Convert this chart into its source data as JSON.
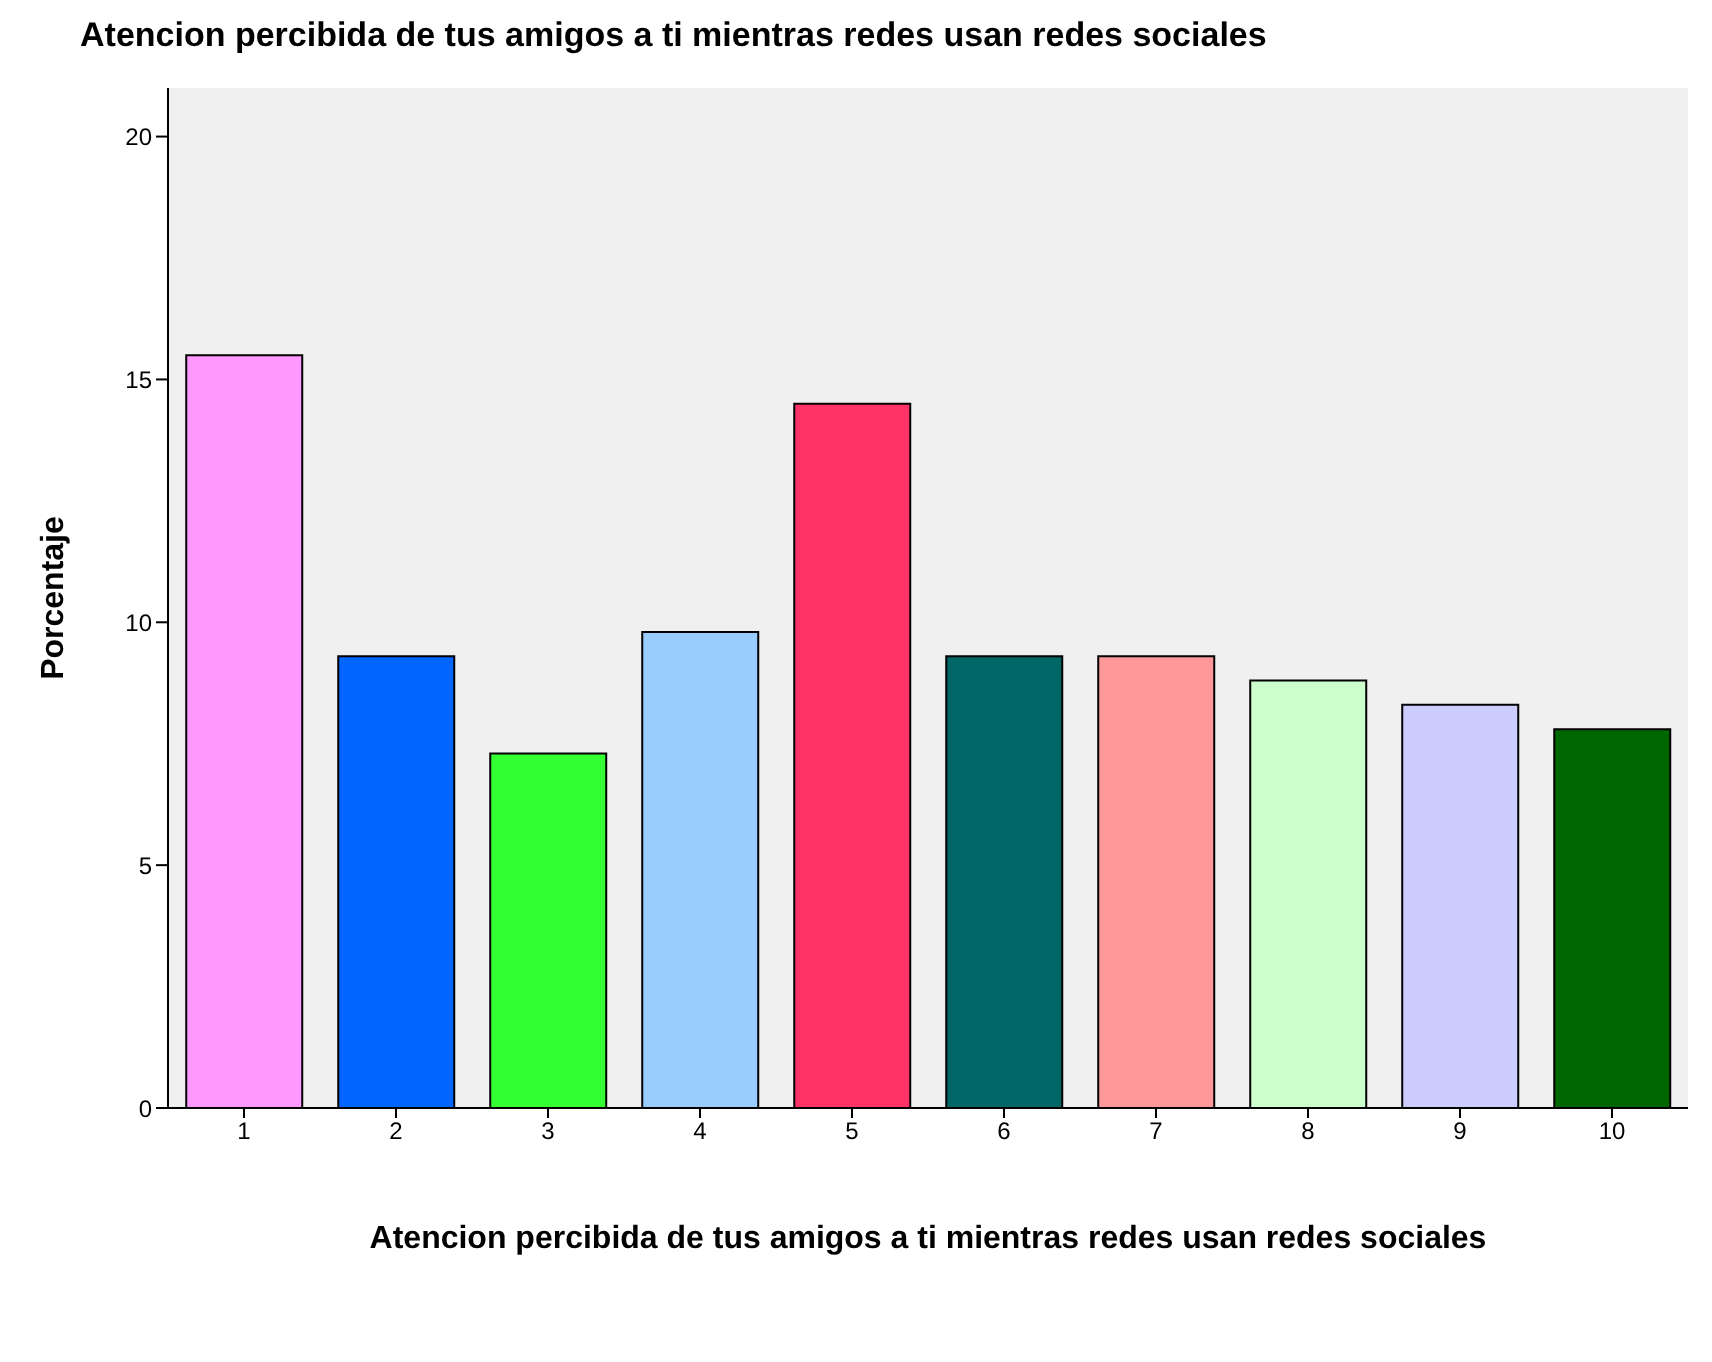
{
  "chart_data": {
    "type": "bar",
    "title": "Atencion percibida de tus amigos a ti mientras redes usan redes sociales",
    "xlabel": "Atencion percibida de tus amigos a ti mientras redes usan redes sociales",
    "ylabel": "Porcentaje",
    "categories": [
      "1",
      "2",
      "3",
      "4",
      "5",
      "6",
      "7",
      "8",
      "9",
      "10"
    ],
    "values": [
      15.5,
      9.3,
      7.3,
      9.8,
      14.5,
      9.3,
      9.3,
      8.8,
      8.3,
      7.8
    ],
    "colors": [
      "#ff99ff",
      "#0066ff",
      "#33ff33",
      "#99ccff",
      "#ff3366",
      "#006666",
      "#ff9999",
      "#ccffcc",
      "#ccccff",
      "#006600"
    ],
    "ylim": [
      0,
      21
    ],
    "yticks": [
      0,
      5,
      10,
      15,
      20
    ],
    "grid": false,
    "legend": false
  }
}
